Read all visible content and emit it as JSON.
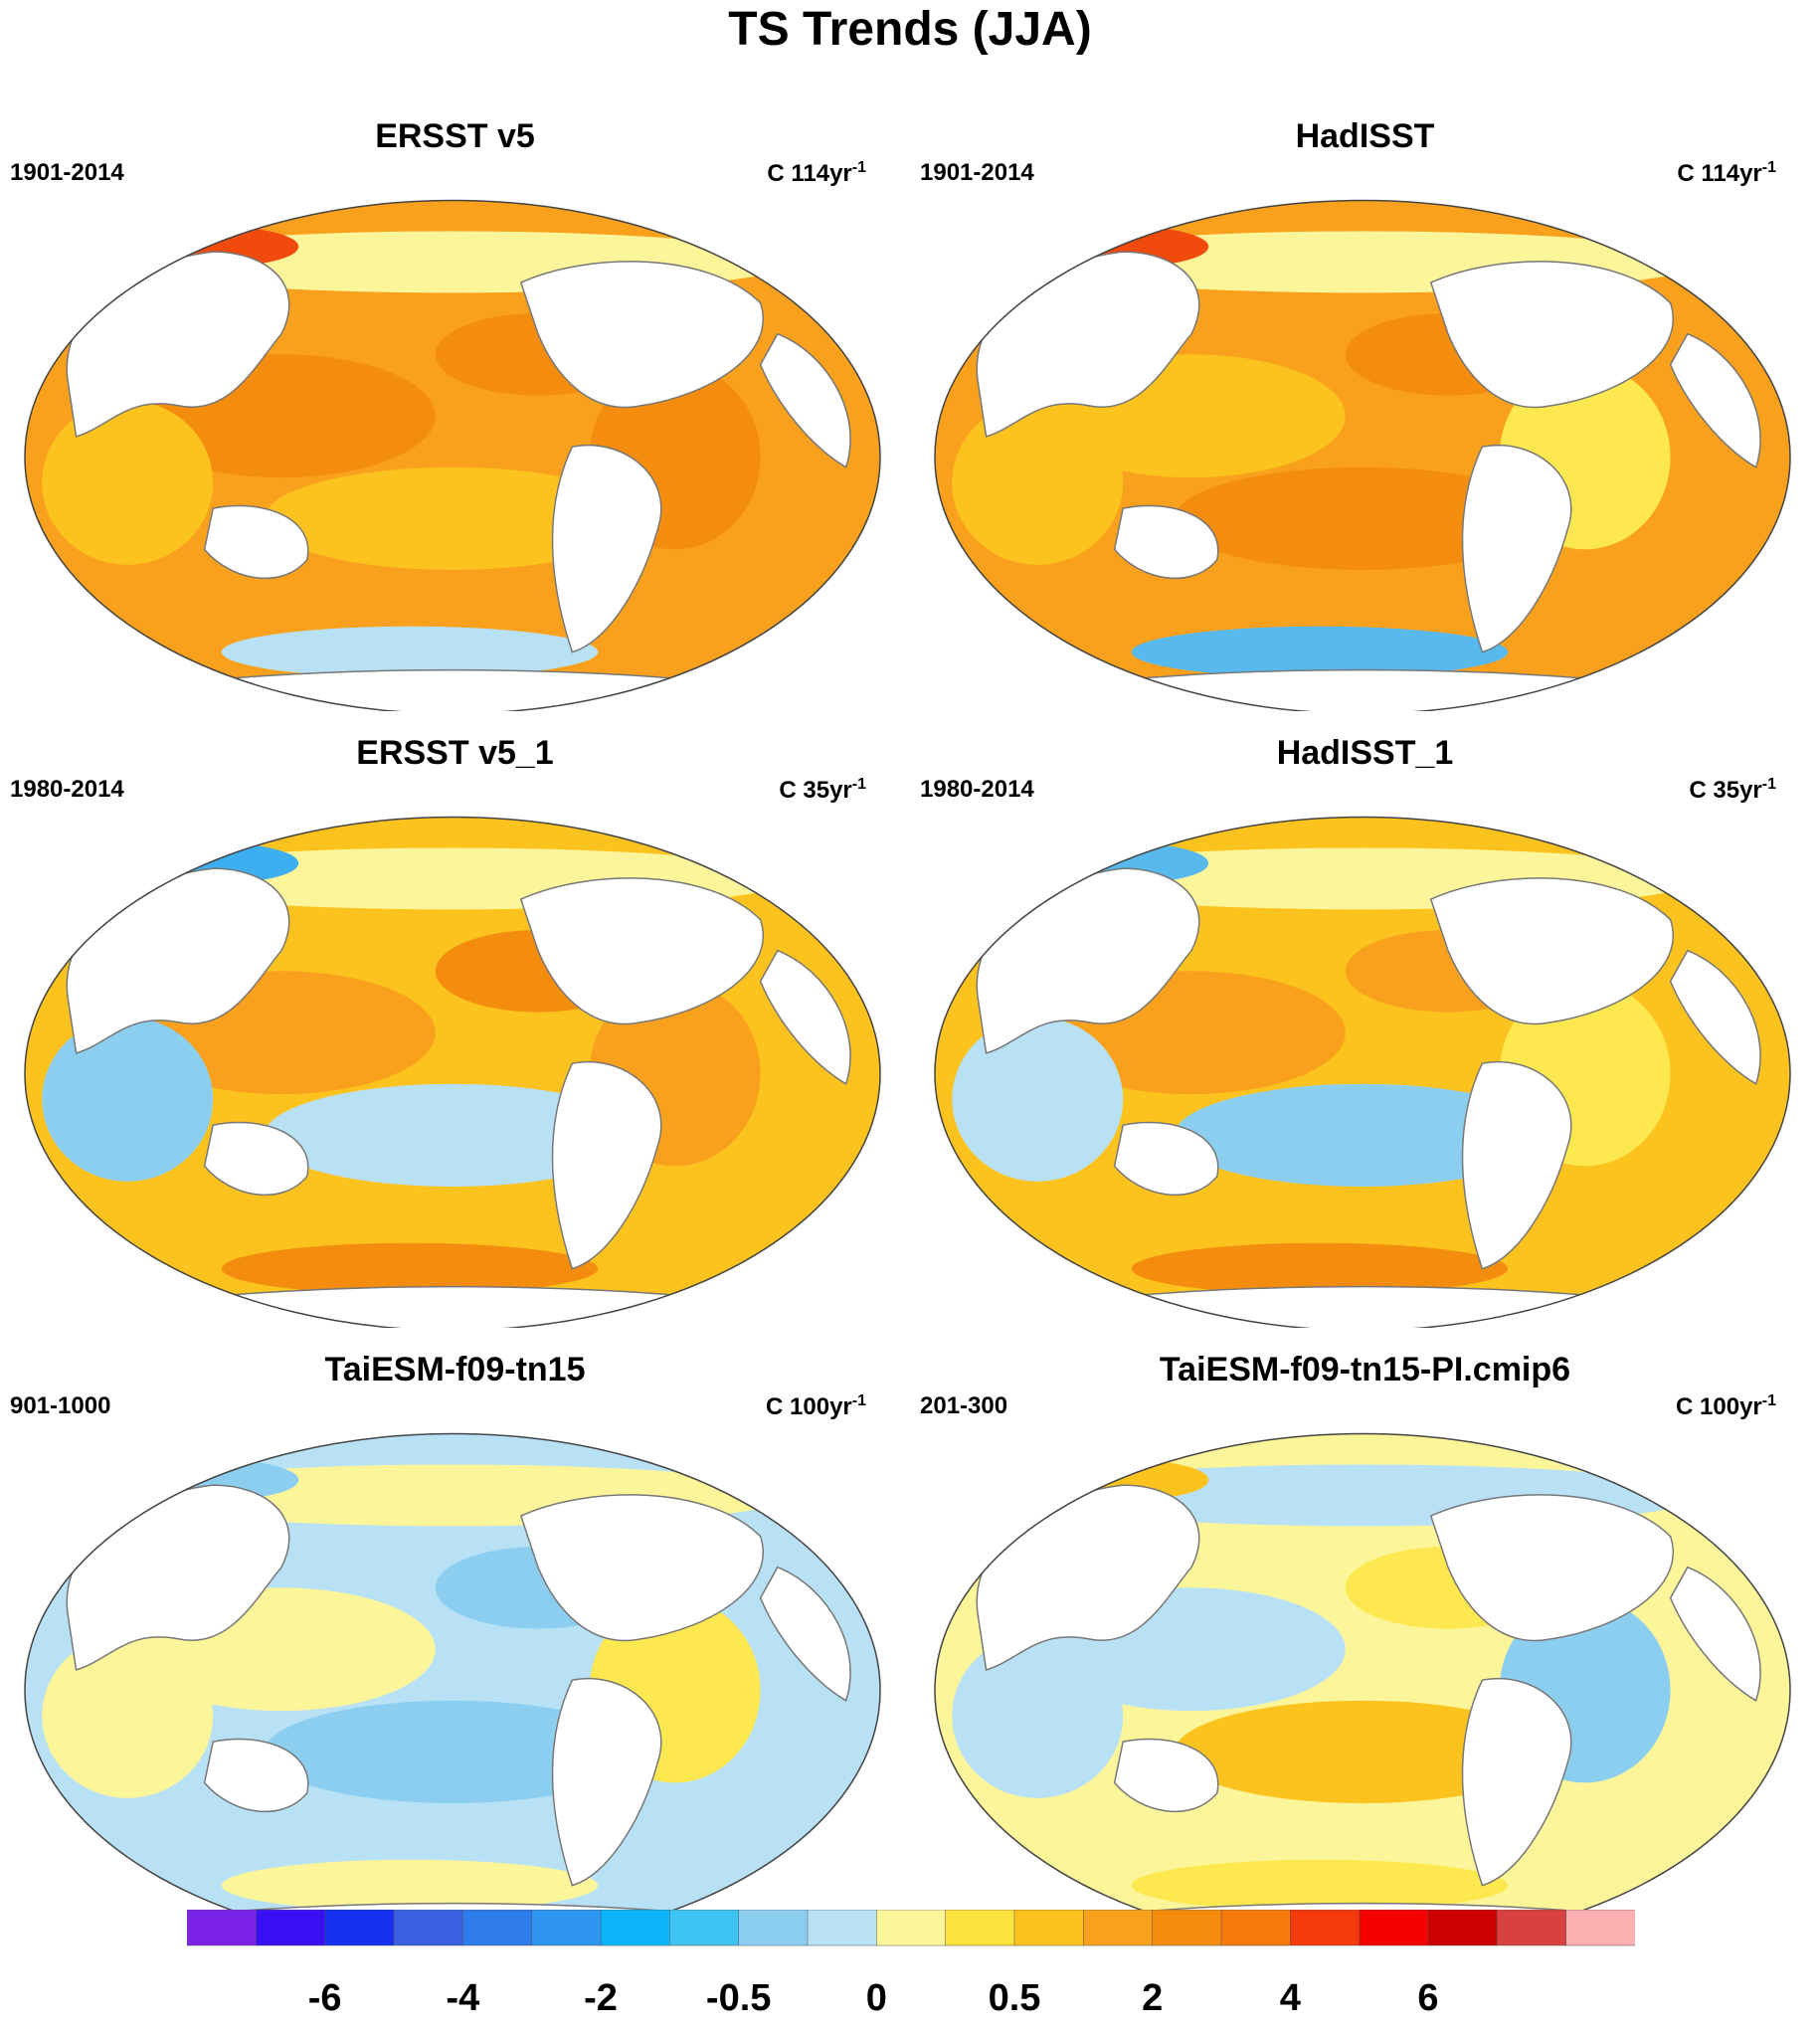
{
  "title": "TS Trends (JJA)",
  "panels": [
    {
      "title": "ERSST v5",
      "period": "1901-2014",
      "units_prefix": "C",
      "units_value": "114yr",
      "units_exp": "-1",
      "base_color": "#F9A11C",
      "patches": [
        {
          "color": "#F48C0E"
        },
        {
          "color": "#F48C0E"
        },
        {
          "color": "#FCC31E"
        },
        {
          "color": "#FCC31E"
        },
        {
          "color": "#F48C0E"
        },
        {
          "color": "#FDF59A"
        },
        {
          "color": "#F04A0C"
        },
        {
          "color": "#B8E1F5"
        }
      ]
    },
    {
      "title": "HadISST",
      "period": "1901-2014",
      "units_prefix": "C",
      "units_value": "114yr",
      "units_exp": "-1",
      "base_color": "#F9A11C",
      "patches": [
        {
          "color": "#FCC31E"
        },
        {
          "color": "#FDE84F"
        },
        {
          "color": "#F48C0E"
        },
        {
          "color": "#FCC31E"
        },
        {
          "color": "#F48C0E"
        },
        {
          "color": "#FDF59A"
        },
        {
          "color": "#F04A0C"
        },
        {
          "color": "#58B9EE"
        }
      ]
    },
    {
      "title": "ERSST v5_1",
      "period": "1980-2014",
      "units_prefix": "C",
      "units_value": "35yr",
      "units_exp": "-1",
      "base_color": "#FCC31E",
      "patches": [
        {
          "color": "#F9A11C"
        },
        {
          "color": "#F9A11C"
        },
        {
          "color": "#B8E1F5"
        },
        {
          "color": "#8CCEF0"
        },
        {
          "color": "#F48C0E"
        },
        {
          "color": "#FDF59A"
        },
        {
          "color": "#3DAEF0"
        },
        {
          "color": "#F48C0E"
        }
      ]
    },
    {
      "title": "HadISST_1",
      "period": "1980-2014",
      "units_prefix": "C",
      "units_value": "35yr",
      "units_exp": "-1",
      "base_color": "#FCC31E",
      "patches": [
        {
          "color": "#F9A11C"
        },
        {
          "color": "#FDE84F"
        },
        {
          "color": "#8CCEF0"
        },
        {
          "color": "#B8E1F5"
        },
        {
          "color": "#F9A11C"
        },
        {
          "color": "#FDF59A"
        },
        {
          "color": "#58B9EE"
        },
        {
          "color": "#F48C0E"
        }
      ]
    },
    {
      "title": "TaiESM-f09-tn15",
      "period": "901-1000",
      "units_prefix": "C",
      "units_value": "100yr",
      "units_exp": "-1",
      "base_color": "#B8E1F5",
      "patches": [
        {
          "color": "#FDF59A"
        },
        {
          "color": "#FDE84F"
        },
        {
          "color": "#8CCEF0"
        },
        {
          "color": "#FDF59A"
        },
        {
          "color": "#8CCEF0"
        },
        {
          "color": "#FDF59A"
        },
        {
          "color": "#8CCEF0"
        },
        {
          "color": "#FDF59A"
        }
      ]
    },
    {
      "title": "TaiESM-f09-tn15-PI.cmip6",
      "period": "201-300",
      "units_prefix": "C",
      "units_value": "100yr",
      "units_exp": "-1",
      "base_color": "#FDF59A",
      "patches": [
        {
          "color": "#B8E1F5"
        },
        {
          "color": "#8CCEF0"
        },
        {
          "color": "#FCC31E"
        },
        {
          "color": "#B8E1F5"
        },
        {
          "color": "#FDE84F"
        },
        {
          "color": "#B8E1F5"
        },
        {
          "color": "#FCC31E"
        },
        {
          "color": "#FDE84F"
        }
      ]
    }
  ],
  "colorbar": {
    "colors": [
      "#7B24E8",
      "#3A0FF5",
      "#1530F0",
      "#3A5FE0",
      "#2E7BEB",
      "#2E96F0",
      "#0BB4F8",
      "#3DC4F2",
      "#8CCEF0",
      "#B8E1F5",
      "#FDF59A",
      "#FCE23C",
      "#FCC31E",
      "#F9A11C",
      "#F48C0E",
      "#F57A0C",
      "#F43A0C",
      "#F60000",
      "#CC0000",
      "#D94040",
      "#FAB0B0"
    ],
    "labels": [
      "-6",
      "-4",
      "-2",
      "-0.5",
      "0",
      "0.5",
      "2",
      "4",
      "6"
    ]
  }
}
